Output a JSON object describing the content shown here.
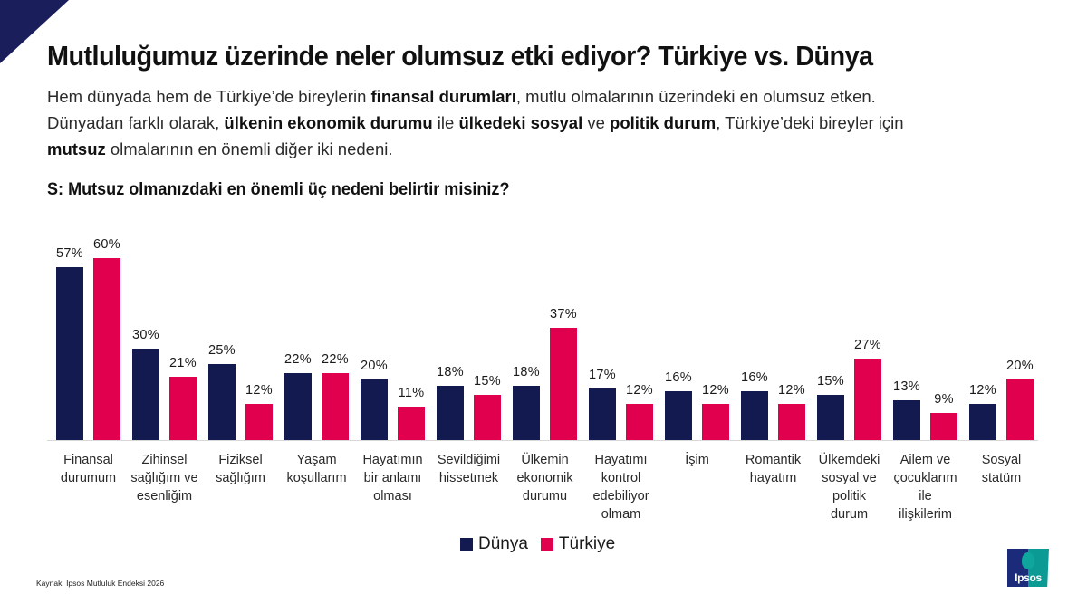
{
  "header": {
    "title": "Mutluluğumuz üzerinde neler olumsuz etki ediyor? Türkiye vs. Dünya",
    "subtitle_parts": {
      "l1_a": "Hem dünyada hem de Türkiye’de bireylerin ",
      "l1_b": "finansal durumları",
      "l1_c": ", mutlu olmalarının üzerindeki en olumsuz etken.",
      "l2_a": "Dünyadan farklı olarak, ",
      "l2_b": "ülkenin ekonomik durumu",
      "l2_c": " ile ",
      "l2_d": "ülkedeki sosyal",
      "l2_e": " ve ",
      "l2_f": "politik durum",
      "l2_g": ", Türkiye’deki bireyler için",
      "l3_a": "mutsuz",
      "l3_b": " olmalarının en önemli diğer iki nedeni."
    },
    "question": "S: Mutsuz olmanızdaki en önemli üç nedeni belirtir misiniz?"
  },
  "legend": {
    "dunya": "Dünya",
    "turkiye": "Türkiye"
  },
  "colors": {
    "dunya": "#131a4f",
    "turkiye": "#e0004d",
    "corner": "#1a1f5c"
  },
  "footer": {
    "source": "Kaynak: Ipsos Mutluluk Endeksi 2026",
    "logo_text": "Ipsos"
  },
  "chart_data": {
    "type": "bar",
    "title": "S: Mutsuz olmanızdaki en önemli üç nedeni belirtir misiniz?",
    "xlabel": "",
    "ylabel": "",
    "ylim": [
      0,
      60
    ],
    "grid": false,
    "legend_position": "bottom",
    "value_format": "percent",
    "categories": [
      "Finansal durumum",
      "Zihinsel sağlığım ve esenliğim",
      "Fiziksel sağlığım",
      "Yaşam koşullarım",
      "Hayatımın bir anlamı olması",
      "Sevildiğimi hissetmek",
      "Ülkemin ekonomik durumu",
      "Hayatımı kontrol edebiliyor olmam",
      "İşim",
      "Romantik hayatım",
      "Ülkemdeki sosyal ve politik durum",
      "Ailem ve çocuklarım ile ilişkilerim",
      "Sosyal statüm"
    ],
    "series": [
      {
        "name": "Dünya",
        "values": [
          57,
          30,
          25,
          22,
          20,
          18,
          18,
          17,
          16,
          16,
          15,
          13,
          12
        ]
      },
      {
        "name": "Türkiye",
        "values": [
          60,
          21,
          12,
          22,
          11,
          15,
          37,
          12,
          12,
          12,
          27,
          9,
          20
        ]
      }
    ],
    "labels": {
      "dunya": [
        "57%",
        "30%",
        "25%",
        "22%",
        "20%",
        "18%",
        "18%",
        "17%",
        "16%",
        "16%",
        "15%",
        "13%",
        "12%"
      ],
      "turkiye": [
        "60%",
        "21%",
        "12%",
        "22%",
        "11%",
        "15%",
        "37%",
        "12%",
        "12%",
        "12%",
        "27%",
        "9%",
        "20%"
      ]
    },
    "category_lines": [
      [
        "Finansal",
        "durumum"
      ],
      [
        "Zihinsel",
        "sağlığım ve",
        "esenliğim"
      ],
      [
        "Fiziksel",
        "sağlığım"
      ],
      [
        "Yaşam",
        "koşullarım"
      ],
      [
        "Hayatımın",
        "bir anlamı",
        "olması"
      ],
      [
        "Sevildiğimi",
        "hissetmek"
      ],
      [
        "Ülkemin",
        "ekonomik",
        "durumu"
      ],
      [
        "Hayatımı",
        "kontrol",
        "edebiliyor",
        "olmam"
      ],
      [
        "İşim"
      ],
      [
        "Romantik",
        "hayatım"
      ],
      [
        "Ülkemdeki",
        "sosyal ve",
        "politik",
        "durum"
      ],
      [
        "Ailem ve",
        "çocuklarım",
        "ile",
        "ilişkilerim"
      ],
      [
        "Sosyal",
        "statüm"
      ]
    ]
  }
}
